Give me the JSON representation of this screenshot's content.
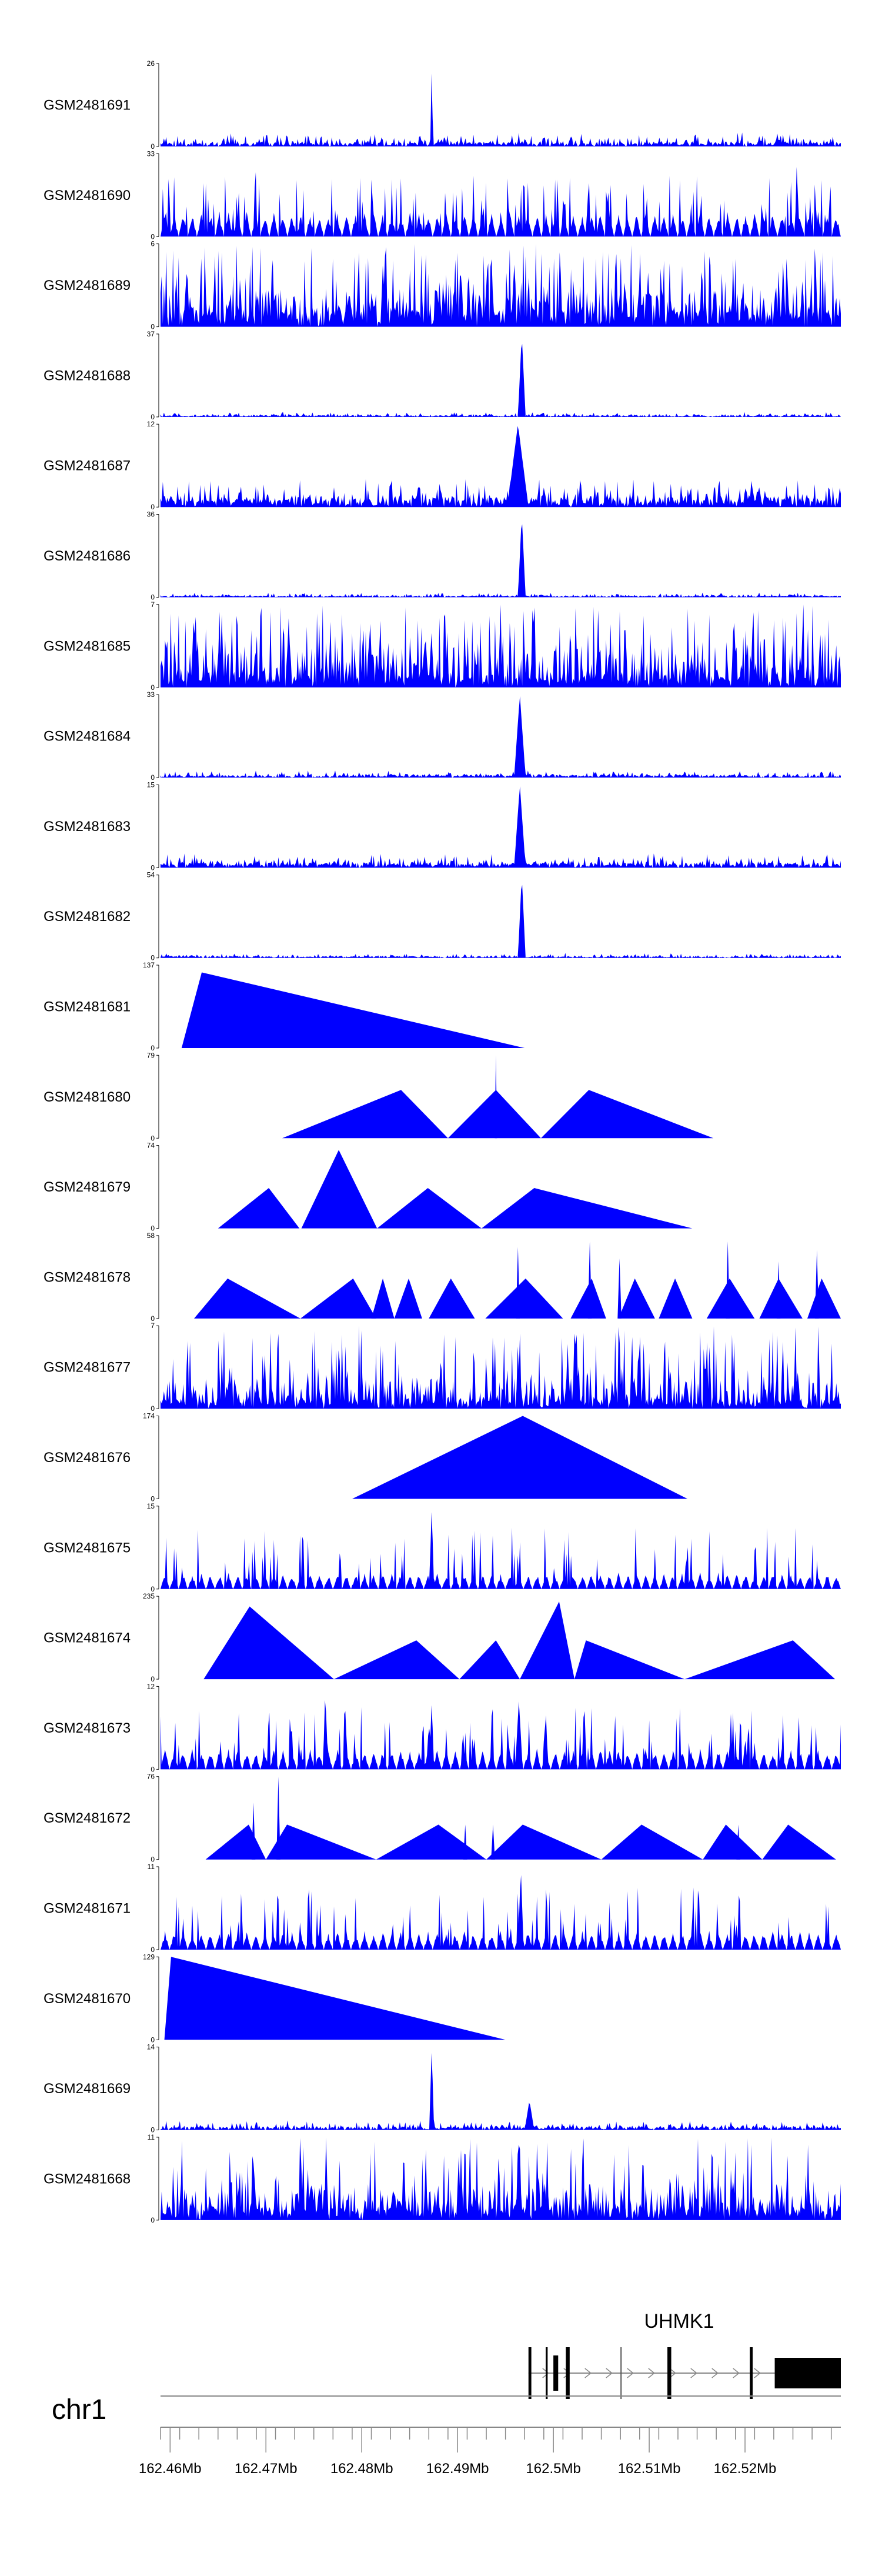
{
  "chart_data": {
    "type": "area",
    "title": "",
    "genome": "chr1",
    "xlim_mb": [
      162.459,
      162.53
    ],
    "x_ticks_mb": [
      162.46,
      162.47,
      162.48,
      162.49,
      162.5,
      162.51,
      162.52
    ],
    "x_tick_labels": [
      "162.46Mb",
      "162.47Mb",
      "162.48Mb",
      "162.49Mb",
      "162.5Mb",
      "162.51Mb",
      "162.52Mb"
    ],
    "tracks": [
      {
        "name": "GSM2481691",
        "ymax": 26,
        "ytop_label": "26",
        "ybottom_label": "0",
        "type": "noise",
        "base": 0.05,
        "noise": 0.12,
        "peaks": [
          [
            162.4873,
            26,
            0.00015
          ]
        ]
      },
      {
        "name": "GSM2481690",
        "ymax": 33,
        "ytop_label": "33",
        "ybottom_label": "0",
        "type": "sparse",
        "gap": 0.0006,
        "amp": 10,
        "spike": 0.15,
        "peaks": [
          [
            162.4689,
            32,
            0.0002
          ],
          [
            162.5254,
            30,
            0.0002
          ],
          [
            162.5057,
            22,
            0.0002
          ]
        ]
      },
      {
        "name": "GSM2481689",
        "ymax": 6,
        "ytop_label": "6",
        "ybottom_label": "0",
        "type": "dense",
        "base": 0.2,
        "noise": 0.35,
        "spike": 0.25,
        "peaks": []
      },
      {
        "name": "GSM2481688",
        "ymax": 37,
        "ytop_label": "37",
        "ybottom_label": "0",
        "type": "noise",
        "base": 0.02,
        "noise": 0.04,
        "peaks": [
          [
            162.4967,
            37,
            0.0004
          ]
        ]
      },
      {
        "name": "GSM2481687",
        "ymax": 12,
        "ytop_label": "12",
        "ybottom_label": "0",
        "type": "noise",
        "base": 0.12,
        "noise": 0.25,
        "peaks": [
          [
            162.4963,
            12,
            0.0011
          ]
        ]
      },
      {
        "name": "GSM2481686",
        "ymax": 36,
        "ytop_label": "36",
        "ybottom_label": "0",
        "type": "noise",
        "base": 0.02,
        "noise": 0.04,
        "peaks": [
          [
            162.4967,
            36,
            0.0004
          ]
        ]
      },
      {
        "name": "GSM2481685",
        "ymax": 7,
        "ytop_label": "7",
        "ybottom_label": "0",
        "type": "dense",
        "base": 0.15,
        "noise": 0.4,
        "spike": 0.3,
        "peaks": []
      },
      {
        "name": "GSM2481684",
        "ymax": 33,
        "ytop_label": "33",
        "ybottom_label": "0",
        "type": "noise",
        "base": 0.03,
        "noise": 0.06,
        "peaks": [
          [
            162.4965,
            33,
            0.0006
          ]
        ]
      },
      {
        "name": "GSM2481683",
        "ymax": 15,
        "ytop_label": "15",
        "ybottom_label": "0",
        "type": "noise",
        "base": 0.06,
        "noise": 0.12,
        "peaks": [
          [
            162.4965,
            15,
            0.0006
          ]
        ]
      },
      {
        "name": "GSM2481682",
        "ymax": 54,
        "ytop_label": "54",
        "ybottom_label": "0",
        "type": "noise",
        "base": 0.02,
        "noise": 0.04,
        "peaks": [
          [
            162.4967,
            54,
            0.0004
          ]
        ]
      },
      {
        "name": "GSM2481681",
        "ymax": 137,
        "ytop_label": "137",
        "ybottom_label": "0",
        "type": "triangles",
        "triangles": [
          [
            162.4612,
            162.4633,
            162.497,
            125
          ]
        ],
        "spikes": []
      },
      {
        "name": "GSM2481680",
        "ymax": 79,
        "ytop_label": "79",
        "ybottom_label": "0",
        "type": "triangles",
        "triangles": [
          [
            162.4717,
            162.4841,
            162.489,
            46
          ],
          [
            162.489,
            162.494,
            162.4987,
            46
          ],
          [
            162.4987,
            162.5037,
            162.5167,
            46
          ]
        ],
        "spikes": [
          [
            162.494,
            79,
            0.00012
          ]
        ]
      },
      {
        "name": "GSM2481679",
        "ymax": 74,
        "ytop_label": "74",
        "ybottom_label": "0",
        "type": "triangles",
        "triangles": [
          [
            162.465,
            162.4703,
            162.4735,
            36
          ],
          [
            162.4737,
            162.4776,
            162.4816,
            70
          ],
          [
            162.4816,
            162.4869,
            162.4925,
            36
          ],
          [
            162.4925,
            162.498,
            162.5145,
            36
          ]
        ],
        "spikes": []
      },
      {
        "name": "GSM2481678",
        "ymax": 58,
        "ytop_label": "58",
        "ybottom_label": "0",
        "type": "triangles",
        "triangles": [
          [
            162.4625,
            162.466,
            162.4736,
            28
          ],
          [
            162.4736,
            162.4791,
            162.4815,
            28
          ],
          [
            162.481,
            162.4822,
            162.4834,
            28
          ],
          [
            162.4834,
            162.4849,
            162.4863,
            28
          ],
          [
            162.487,
            162.4893,
            162.4918,
            28
          ],
          [
            162.4929,
            162.4971,
            162.501,
            28
          ],
          [
            162.5018,
            162.504,
            162.5055,
            28
          ],
          [
            162.5068,
            162.5085,
            162.5106,
            28
          ],
          [
            162.511,
            162.5127,
            162.5145,
            28
          ],
          [
            162.516,
            162.5184,
            162.521,
            28
          ],
          [
            162.5215,
            162.5235,
            162.526,
            28
          ],
          [
            162.5265,
            162.528,
            162.53,
            28
          ]
        ],
        "spikes": [
          [
            162.4963,
            50,
            0.0002
          ],
          [
            162.5038,
            54,
            0.0002
          ],
          [
            162.5182,
            54,
            0.0002
          ],
          [
            162.5275,
            48,
            0.0002
          ],
          [
            162.5235,
            40,
            0.0002
          ],
          [
            162.5069,
            42,
            0.0002
          ]
        ]
      },
      {
        "name": "GSM2481677",
        "ymax": 7,
        "ytop_label": "7",
        "ybottom_label": "0",
        "type": "dense",
        "base": 0.12,
        "noise": 0.3,
        "spike": 0.2,
        "peaks": [
          [
            162.4963,
            6,
            0.0002
          ],
          [
            162.5015,
            6,
            0.0002
          ],
          [
            162.5163,
            6,
            0.0002
          ]
        ]
      },
      {
        "name": "GSM2481676",
        "ymax": 174,
        "ytop_label": "174",
        "ybottom_label": "0",
        "type": "triangles",
        "triangles": [
          [
            162.479,
            162.4968,
            162.514,
            174
          ]
        ],
        "spikes": []
      },
      {
        "name": "GSM2481675",
        "ymax": 15,
        "ytop_label": "15",
        "ybottom_label": "0",
        "type": "sparse",
        "gap": 0.00015,
        "amp": 3,
        "spike": 0.1,
        "peaks": [
          [
            162.4873,
            15,
            0.00025
          ]
        ]
      },
      {
        "name": "GSM2481674",
        "ymax": 235,
        "ytop_label": "235",
        "ybottom_label": "0",
        "type": "triangles",
        "triangles": [
          [
            162.4635,
            162.4683,
            162.4771,
            206
          ],
          [
            162.4771,
            162.4857,
            162.4902,
            110
          ],
          [
            162.4902,
            162.494,
            162.4965,
            110
          ],
          [
            162.4965,
            162.5006,
            162.5022,
            220
          ],
          [
            162.5022,
            162.5034,
            162.5137,
            110
          ],
          [
            162.5137,
            162.525,
            162.5294,
            110
          ]
        ],
        "spikes": []
      },
      {
        "name": "GSM2481673",
        "ymax": 12,
        "ytop_label": "12",
        "ybottom_label": "0",
        "type": "sparse",
        "gap": 0.0004,
        "amp": 3,
        "spike": 0.15,
        "peaks": [
          [
            162.4762,
            12,
            0.00025
          ],
          [
            162.4873,
            10,
            0.00025
          ],
          [
            162.4964,
            10,
            0.0004
          ],
          [
            162.4992,
            9,
            0.00025
          ]
        ]
      },
      {
        "name": "GSM2481672",
        "ymax": 76,
        "ytop_label": "76",
        "ybottom_label": "0",
        "type": "triangles",
        "triangles": [
          [
            162.4637,
            162.4682,
            162.47,
            32
          ],
          [
            162.47,
            162.4722,
            162.4815,
            32
          ],
          [
            162.4815,
            162.488,
            162.493,
            32
          ],
          [
            162.493,
            162.4968,
            162.505,
            32
          ],
          [
            162.505,
            162.5092,
            162.5156,
            32
          ],
          [
            162.5156,
            162.518,
            162.5218,
            32
          ],
          [
            162.5218,
            162.5245,
            162.5295,
            32
          ]
        ],
        "spikes": [
          [
            162.4687,
            52,
            0.0002
          ],
          [
            162.4713,
            76,
            0.0002
          ],
          [
            162.4908,
            32,
            0.0002
          ],
          [
            162.4937,
            32,
            0.0002
          ],
          [
            162.5193,
            32,
            0.0002
          ]
        ]
      },
      {
        "name": "GSM2481671",
        "ymax": 11,
        "ytop_label": "11",
        "ybottom_label": "0",
        "type": "sparse",
        "gap": 0.0001,
        "amp": 2.5,
        "spike": 0.12,
        "peaks": [
          [
            162.4966,
            11,
            0.0003
          ]
        ]
      },
      {
        "name": "GSM2481670",
        "ymax": 129,
        "ytop_label": "129",
        "ybottom_label": "0",
        "type": "triangles",
        "triangles": [
          [
            162.4594,
            162.4601,
            162.495,
            129
          ]
        ],
        "spikes": []
      },
      {
        "name": "GSM2481669",
        "ymax": 14,
        "ytop_label": "14",
        "ybottom_label": "0",
        "type": "noise",
        "base": 0.04,
        "noise": 0.08,
        "peaks": [
          [
            162.4873,
            14,
            0.00025
          ],
          [
            162.4975,
            5,
            0.0005
          ]
        ]
      },
      {
        "name": "GSM2481668",
        "ymax": 11,
        "ytop_label": "11",
        "ybottom_label": "0",
        "type": "dense",
        "base": 0.15,
        "noise": 0.35,
        "spike": 0.2,
        "peaks": [
          [
            162.4943,
            10,
            0.0002
          ],
          [
            162.4963,
            10,
            0.0002
          ],
          [
            162.4965,
            10,
            0.0002
          ]
        ]
      }
    ],
    "gene": {
      "name": "UHMK1",
      "exons": [
        [
          162.4974,
          162.4977
        ],
        [
          162.4992,
          162.4994
        ],
        [
          162.5,
          162.5005
        ],
        [
          162.5013,
          162.5017
        ],
        [
          162.507,
          162.5071
        ],
        [
          162.5119,
          162.5123
        ],
        [
          162.5205,
          162.5208
        ],
        [
          162.5231,
          162.53
        ]
      ],
      "intron": [
        162.4974,
        162.5231
      ]
    }
  }
}
